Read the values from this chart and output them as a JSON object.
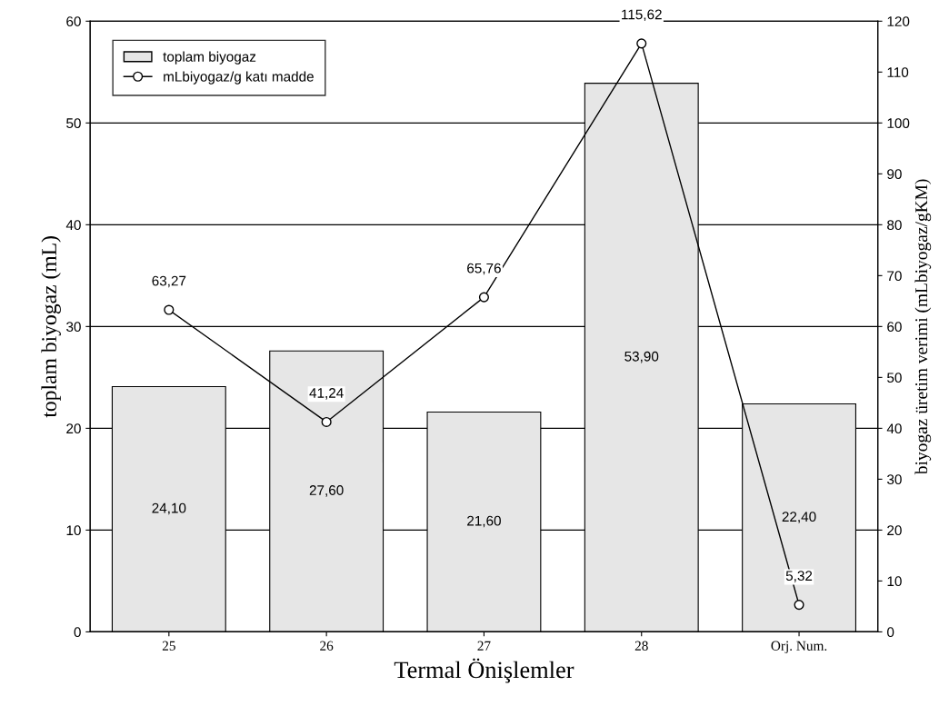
{
  "chart_data": {
    "type": "bar",
    "xlabel": "Termal Önişlemler",
    "ylabel": "toplam biyogaz (mL)",
    "y2label": "biyogaz üretim verimi (mLbiyogaz/gKM)",
    "categories": [
      "25",
      "26",
      "27",
      "28",
      "Orj. Num."
    ],
    "series": [
      {
        "name": "toplam biyogaz",
        "color": "#e6e6e6",
        "values": [
          24.1,
          27.6,
          21.6,
          53.9,
          22.4
        ],
        "value_labels": [
          "24,10",
          "27,60",
          "21,60",
          "53,90",
          "22,40"
        ]
      },
      {
        "name": "mLbiyogaz/g katı madde",
        "type": "line",
        "axis": "y2",
        "color": "#000000",
        "marker": "circle",
        "values": [
          63.27,
          41.24,
          65.76,
          115.62,
          5.32
        ],
        "value_labels": [
          "63,27",
          "41,24",
          "65,76",
          "115,62",
          "5,32"
        ]
      }
    ],
    "ylim": [
      0,
      60
    ],
    "yticks": [
      0,
      10,
      20,
      30,
      40,
      50,
      60
    ],
    "y2lim": [
      0,
      120
    ],
    "y2ticks": [
      0,
      10,
      20,
      30,
      40,
      50,
      60,
      70,
      80,
      90,
      100,
      110,
      120
    ],
    "grid": "y",
    "legend": "top left"
  }
}
